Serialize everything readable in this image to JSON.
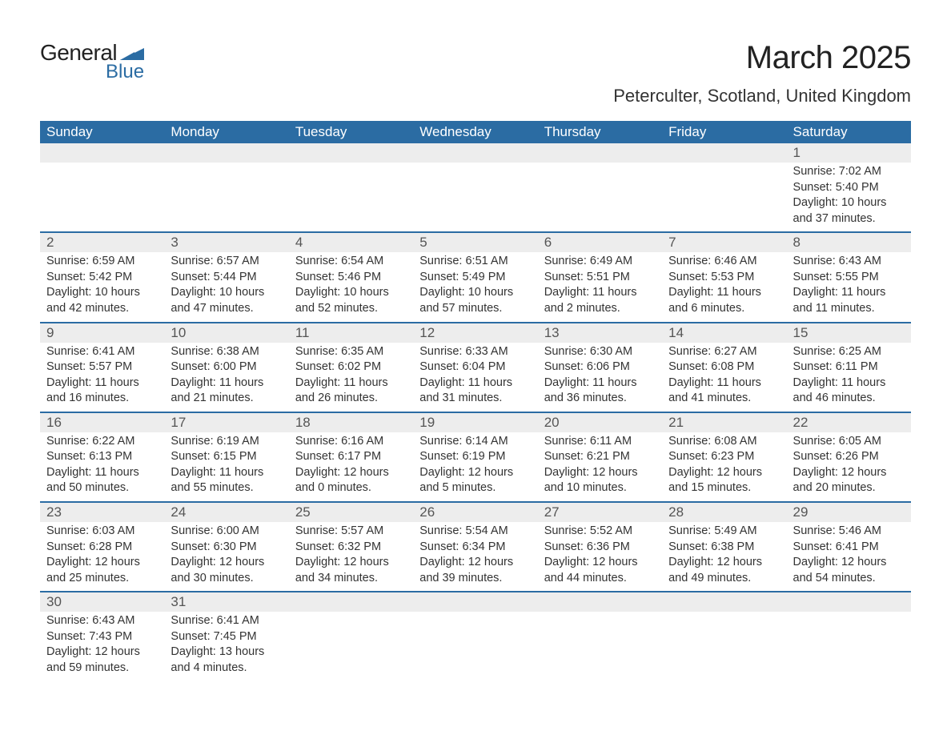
{
  "brand": {
    "general": "General",
    "blue": "Blue",
    "logo_color": "#2b6ca3"
  },
  "title": "March 2025",
  "location": "Peterculter, Scotland, United Kingdom",
  "header_bg": "#2b6ca3",
  "header_text": "#ffffff",
  "row_separator_color": "#2b6ca3",
  "daynum_bg": "#ededed",
  "body_bg": "#ffffff",
  "text_color": "#333333",
  "title_fontsize": 40,
  "location_fontsize": 22,
  "header_fontsize": 17,
  "daynum_fontsize": 17,
  "detail_fontsize": 14.5,
  "columns": [
    "Sunday",
    "Monday",
    "Tuesday",
    "Wednesday",
    "Thursday",
    "Friday",
    "Saturday"
  ],
  "weeks": [
    [
      null,
      null,
      null,
      null,
      null,
      null,
      {
        "day": "1",
        "sunrise": "Sunrise: 7:02 AM",
        "sunset": "Sunset: 5:40 PM",
        "daylight1": "Daylight: 10 hours",
        "daylight2": "and 37 minutes."
      }
    ],
    [
      {
        "day": "2",
        "sunrise": "Sunrise: 6:59 AM",
        "sunset": "Sunset: 5:42 PM",
        "daylight1": "Daylight: 10 hours",
        "daylight2": "and 42 minutes."
      },
      {
        "day": "3",
        "sunrise": "Sunrise: 6:57 AM",
        "sunset": "Sunset: 5:44 PM",
        "daylight1": "Daylight: 10 hours",
        "daylight2": "and 47 minutes."
      },
      {
        "day": "4",
        "sunrise": "Sunrise: 6:54 AM",
        "sunset": "Sunset: 5:46 PM",
        "daylight1": "Daylight: 10 hours",
        "daylight2": "and 52 minutes."
      },
      {
        "day": "5",
        "sunrise": "Sunrise: 6:51 AM",
        "sunset": "Sunset: 5:49 PM",
        "daylight1": "Daylight: 10 hours",
        "daylight2": "and 57 minutes."
      },
      {
        "day": "6",
        "sunrise": "Sunrise: 6:49 AM",
        "sunset": "Sunset: 5:51 PM",
        "daylight1": "Daylight: 11 hours",
        "daylight2": "and 2 minutes."
      },
      {
        "day": "7",
        "sunrise": "Sunrise: 6:46 AM",
        "sunset": "Sunset: 5:53 PM",
        "daylight1": "Daylight: 11 hours",
        "daylight2": "and 6 minutes."
      },
      {
        "day": "8",
        "sunrise": "Sunrise: 6:43 AM",
        "sunset": "Sunset: 5:55 PM",
        "daylight1": "Daylight: 11 hours",
        "daylight2": "and 11 minutes."
      }
    ],
    [
      {
        "day": "9",
        "sunrise": "Sunrise: 6:41 AM",
        "sunset": "Sunset: 5:57 PM",
        "daylight1": "Daylight: 11 hours",
        "daylight2": "and 16 minutes."
      },
      {
        "day": "10",
        "sunrise": "Sunrise: 6:38 AM",
        "sunset": "Sunset: 6:00 PM",
        "daylight1": "Daylight: 11 hours",
        "daylight2": "and 21 minutes."
      },
      {
        "day": "11",
        "sunrise": "Sunrise: 6:35 AM",
        "sunset": "Sunset: 6:02 PM",
        "daylight1": "Daylight: 11 hours",
        "daylight2": "and 26 minutes."
      },
      {
        "day": "12",
        "sunrise": "Sunrise: 6:33 AM",
        "sunset": "Sunset: 6:04 PM",
        "daylight1": "Daylight: 11 hours",
        "daylight2": "and 31 minutes."
      },
      {
        "day": "13",
        "sunrise": "Sunrise: 6:30 AM",
        "sunset": "Sunset: 6:06 PM",
        "daylight1": "Daylight: 11 hours",
        "daylight2": "and 36 minutes."
      },
      {
        "day": "14",
        "sunrise": "Sunrise: 6:27 AM",
        "sunset": "Sunset: 6:08 PM",
        "daylight1": "Daylight: 11 hours",
        "daylight2": "and 41 minutes."
      },
      {
        "day": "15",
        "sunrise": "Sunrise: 6:25 AM",
        "sunset": "Sunset: 6:11 PM",
        "daylight1": "Daylight: 11 hours",
        "daylight2": "and 46 minutes."
      }
    ],
    [
      {
        "day": "16",
        "sunrise": "Sunrise: 6:22 AM",
        "sunset": "Sunset: 6:13 PM",
        "daylight1": "Daylight: 11 hours",
        "daylight2": "and 50 minutes."
      },
      {
        "day": "17",
        "sunrise": "Sunrise: 6:19 AM",
        "sunset": "Sunset: 6:15 PM",
        "daylight1": "Daylight: 11 hours",
        "daylight2": "and 55 minutes."
      },
      {
        "day": "18",
        "sunrise": "Sunrise: 6:16 AM",
        "sunset": "Sunset: 6:17 PM",
        "daylight1": "Daylight: 12 hours",
        "daylight2": "and 0 minutes."
      },
      {
        "day": "19",
        "sunrise": "Sunrise: 6:14 AM",
        "sunset": "Sunset: 6:19 PM",
        "daylight1": "Daylight: 12 hours",
        "daylight2": "and 5 minutes."
      },
      {
        "day": "20",
        "sunrise": "Sunrise: 6:11 AM",
        "sunset": "Sunset: 6:21 PM",
        "daylight1": "Daylight: 12 hours",
        "daylight2": "and 10 minutes."
      },
      {
        "day": "21",
        "sunrise": "Sunrise: 6:08 AM",
        "sunset": "Sunset: 6:23 PM",
        "daylight1": "Daylight: 12 hours",
        "daylight2": "and 15 minutes."
      },
      {
        "day": "22",
        "sunrise": "Sunrise: 6:05 AM",
        "sunset": "Sunset: 6:26 PM",
        "daylight1": "Daylight: 12 hours",
        "daylight2": "and 20 minutes."
      }
    ],
    [
      {
        "day": "23",
        "sunrise": "Sunrise: 6:03 AM",
        "sunset": "Sunset: 6:28 PM",
        "daylight1": "Daylight: 12 hours",
        "daylight2": "and 25 minutes."
      },
      {
        "day": "24",
        "sunrise": "Sunrise: 6:00 AM",
        "sunset": "Sunset: 6:30 PM",
        "daylight1": "Daylight: 12 hours",
        "daylight2": "and 30 minutes."
      },
      {
        "day": "25",
        "sunrise": "Sunrise: 5:57 AM",
        "sunset": "Sunset: 6:32 PM",
        "daylight1": "Daylight: 12 hours",
        "daylight2": "and 34 minutes."
      },
      {
        "day": "26",
        "sunrise": "Sunrise: 5:54 AM",
        "sunset": "Sunset: 6:34 PM",
        "daylight1": "Daylight: 12 hours",
        "daylight2": "and 39 minutes."
      },
      {
        "day": "27",
        "sunrise": "Sunrise: 5:52 AM",
        "sunset": "Sunset: 6:36 PM",
        "daylight1": "Daylight: 12 hours",
        "daylight2": "and 44 minutes."
      },
      {
        "day": "28",
        "sunrise": "Sunrise: 5:49 AM",
        "sunset": "Sunset: 6:38 PM",
        "daylight1": "Daylight: 12 hours",
        "daylight2": "and 49 minutes."
      },
      {
        "day": "29",
        "sunrise": "Sunrise: 5:46 AM",
        "sunset": "Sunset: 6:41 PM",
        "daylight1": "Daylight: 12 hours",
        "daylight2": "and 54 minutes."
      }
    ],
    [
      {
        "day": "30",
        "sunrise": "Sunrise: 6:43 AM",
        "sunset": "Sunset: 7:43 PM",
        "daylight1": "Daylight: 12 hours",
        "daylight2": "and 59 minutes."
      },
      {
        "day": "31",
        "sunrise": "Sunrise: 6:41 AM",
        "sunset": "Sunset: 7:45 PM",
        "daylight1": "Daylight: 13 hours",
        "daylight2": "and 4 minutes."
      },
      null,
      null,
      null,
      null,
      null
    ]
  ]
}
